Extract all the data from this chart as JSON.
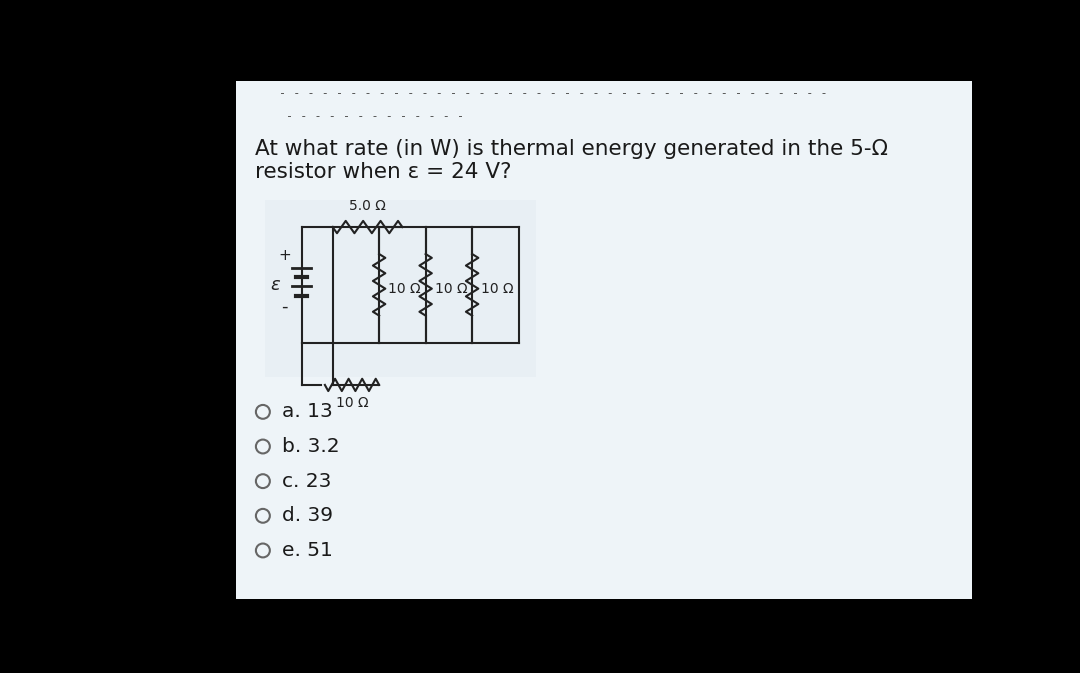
{
  "bg_color": "#c8dce8",
  "card_color": "#eef4f8",
  "white_color": "#ffffff",
  "text_color": "#1a1a1a",
  "line_color": "#333333",
  "title_line1": "At what rate (in W) is thermal energy generated in the 5-Ω",
  "title_line2": "resistor when ε = 24 V?",
  "dashes_top": "- - - - - - - - - - - - - - - - - - - - - - - - - - - - - - - - - - - - - - -",
  "dashes_mid": "- - - - - - - - - - - - -",
  "options": [
    "a. 13",
    "b. 3.2",
    "c. 23",
    "d. 39",
    "e. 51"
  ],
  "top_resistor_label": "5.0 Ω",
  "mid_r1": "10 Ω",
  "mid_r2": "10 Ω",
  "mid_r3": "10 Ω",
  "bot_resistor_label": "10 Ω",
  "emf_label": "ε",
  "plus_label": "+",
  "minus_label": "-"
}
